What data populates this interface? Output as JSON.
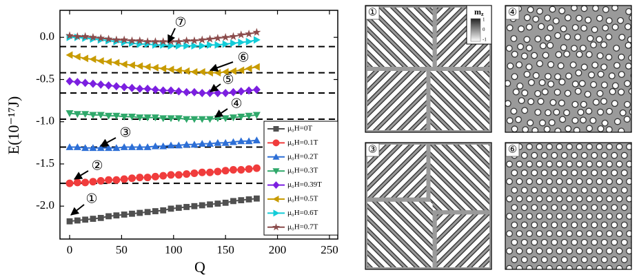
{
  "chart_data": {
    "type": "line",
    "xlabel": "Q",
    "ylabel": "E(10⁻¹⁷J)",
    "x": [
      0,
      7.5,
      15,
      22.5,
      30,
      37.5,
      45,
      52.5,
      60,
      67.5,
      75,
      82.5,
      90,
      97.5,
      105,
      112.5,
      120,
      127.5,
      135,
      142.5,
      150,
      157.5,
      165,
      172.5,
      180
    ],
    "series": [
      {
        "name": "μ₀H=0T",
        "color": "#505050",
        "marker": "square",
        "values": [
          -2.18,
          -2.17,
          -2.16,
          -2.15,
          -2.14,
          -2.12,
          -2.11,
          -2.1,
          -2.09,
          -2.08,
          -2.07,
          -2.06,
          -2.05,
          -2.03,
          -2.02,
          -2.01,
          -2.0,
          -1.99,
          -1.98,
          -1.97,
          -1.96,
          -1.94,
          -1.93,
          -1.92,
          -1.91
        ]
      },
      {
        "name": "μ₀H=0.1T",
        "color": "#f03c3c",
        "marker": "circle",
        "values": [
          -1.73,
          -1.72,
          -1.72,
          -1.71,
          -1.7,
          -1.69,
          -1.69,
          -1.68,
          -1.67,
          -1.66,
          -1.66,
          -1.65,
          -1.64,
          -1.63,
          -1.63,
          -1.62,
          -1.61,
          -1.6,
          -1.6,
          -1.59,
          -1.58,
          -1.57,
          -1.57,
          -1.56,
          -1.55
        ]
      },
      {
        "name": "μ₀H=0.2T",
        "color": "#2d6fd6",
        "marker": "triangle-up",
        "values": [
          -1.3,
          -1.3,
          -1.31,
          -1.31,
          -1.31,
          -1.31,
          -1.31,
          -1.3,
          -1.3,
          -1.3,
          -1.3,
          -1.29,
          -1.29,
          -1.28,
          -1.28,
          -1.27,
          -1.27,
          -1.26,
          -1.26,
          -1.25,
          -1.25,
          -1.24,
          -1.23,
          -1.23,
          -1.22
        ]
      },
      {
        "name": "μ₀H=0.3T",
        "color": "#2fa86a",
        "marker": "triangle-down",
        "values": [
          -0.9,
          -0.91,
          -0.91,
          -0.92,
          -0.92,
          -0.93,
          -0.93,
          -0.94,
          -0.94,
          -0.95,
          -0.95,
          -0.95,
          -0.96,
          -0.96,
          -0.96,
          -0.97,
          -0.97,
          -0.97,
          -0.97,
          -0.96,
          -0.96,
          -0.95,
          -0.94,
          -0.93,
          -0.92
        ]
      },
      {
        "name": "μ₀H=0.39T",
        "color": "#7b1fe0",
        "marker": "diamond",
        "values": [
          -0.52,
          -0.53,
          -0.54,
          -0.55,
          -0.56,
          -0.57,
          -0.58,
          -0.59,
          -0.6,
          -0.61,
          -0.61,
          -0.62,
          -0.63,
          -0.63,
          -0.64,
          -0.65,
          -0.65,
          -0.66,
          -0.66,
          -0.66,
          -0.66,
          -0.65,
          -0.64,
          -0.63,
          -0.62
        ]
      },
      {
        "name": "μ₀H=0.5T",
        "color": "#c89b00",
        "marker": "triangle-left",
        "values": [
          -0.21,
          -0.23,
          -0.25,
          -0.26,
          -0.28,
          -0.29,
          -0.3,
          -0.32,
          -0.33,
          -0.34,
          -0.35,
          -0.36,
          -0.37,
          -0.38,
          -0.39,
          -0.4,
          -0.41,
          -0.41,
          -0.42,
          -0.42,
          -0.41,
          -0.4,
          -0.39,
          -0.37,
          -0.35
        ]
      },
      {
        "name": "μ₀H=0.6T",
        "color": "#12ccd8",
        "marker": "triangle-right",
        "values": [
          0.0,
          0.0,
          -0.01,
          -0.02,
          -0.03,
          -0.04,
          -0.05,
          -0.06,
          -0.07,
          -0.08,
          -0.08,
          -0.09,
          -0.09,
          -0.1,
          -0.1,
          -0.1,
          -0.1,
          -0.1,
          -0.09,
          -0.09,
          -0.08,
          -0.07,
          -0.06,
          -0.05,
          -0.03
        ]
      },
      {
        "name": "μ₀H=0.7T",
        "color": "#8b4c4c",
        "marker": "star",
        "values": [
          0.02,
          0.01,
          0.01,
          0.0,
          -0.01,
          -0.02,
          -0.03,
          -0.03,
          -0.04,
          -0.04,
          -0.05,
          -0.05,
          -0.05,
          -0.05,
          -0.05,
          -0.04,
          -0.04,
          -0.03,
          -0.02,
          -0.01,
          0.0,
          0.01,
          0.03,
          0.04,
          0.06
        ]
      }
    ],
    "hlines": [
      -0.11,
      -0.42,
      -0.66,
      -0.97,
      -1.3,
      -1.73
    ],
    "annotations": [
      "①",
      "②",
      "③",
      "④",
      "⑤",
      "⑥",
      "⑦"
    ],
    "xlim": [
      -9.3,
      258
    ],
    "xticks": [
      0,
      50,
      100,
      150,
      200,
      250
    ],
    "ylim": [
      -2.39,
      0.32
    ],
    "yticks": [
      {
        "value": 0,
        "label": "0.0"
      },
      -0.5,
      {
        "value": -1,
        "label": "-1.0"
      },
      -1.5,
      {
        "value": -2,
        "label": "-2.0"
      }
    ],
    "legend": "lower right"
  },
  "panels": [
    {
      "label": "①",
      "pattern": "stripes"
    },
    {
      "label": "④",
      "pattern": "bubbles-irregular"
    },
    {
      "label": "③",
      "pattern": "stripes"
    },
    {
      "label": "⑥",
      "pattern": "bubbles-lattice"
    }
  ],
  "colorbar": {
    "title": "m",
    "title_subscript": "z",
    "ticks": [
      "1",
      "0",
      "-1"
    ]
  }
}
